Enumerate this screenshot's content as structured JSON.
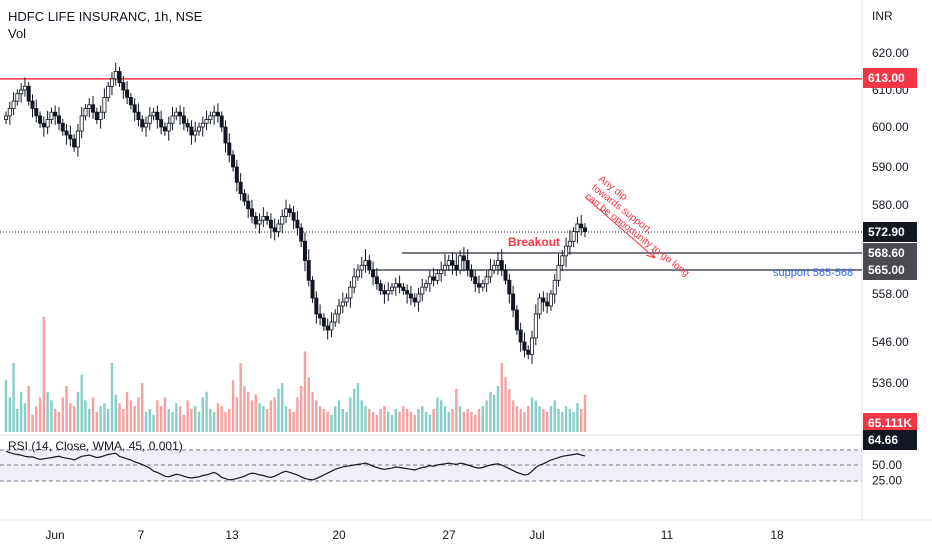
{
  "header": {
    "symbol_line": "HDFC LIFE INSURANC, 1h, NSE",
    "volume_label": "Vol"
  },
  "rsi_label": "RSI (14, Close, WMA, 45, 0.001)",
  "price_axis": {
    "currency": "INR",
    "ticks": [
      "620.00",
      "610.00",
      "600.00",
      "590.00",
      "580.00",
      "558.00",
      "546.00",
      "536.00"
    ]
  },
  "rsi_axis": {
    "ticks": [
      "50.00",
      "25.00"
    ]
  },
  "time_axis": {
    "ticks": [
      "Jun",
      "7",
      "13",
      "20",
      "27",
      "Jul",
      "11",
      "18"
    ]
  },
  "price_badges": {
    "resistance": "613.00",
    "last": "572.90",
    "upper_support": "568.60",
    "lower_support": "565.00",
    "volume": "65.111K",
    "rsi": "64.66"
  },
  "annotations": {
    "breakout": "Breakout",
    "support": "support 565-568",
    "dip_note": "Any dip towards support, can be opportunity to go long"
  },
  "colors": {
    "up": "#131722",
    "down": "#131722",
    "vol_up": "#26a69a",
    "vol_down": "#ef5350",
    "resistance_line": "#f23645",
    "support_line": "#787b86",
    "annotation_red": "#f23645",
    "annotation_blue": "#2962ff",
    "rsi_band": "#7e57c2"
  },
  "chart_data": {
    "type": "candlestick",
    "title": "HDFC LIFE INSURANC, 1h, NSE",
    "ylabel": "INR",
    "ylim": [
      524,
      626
    ],
    "horizontal_levels": [
      613.0,
      568.6,
      565.0
    ],
    "last_price": 572.9,
    "close": [
      603,
      605,
      607,
      609,
      610,
      611,
      607,
      605,
      603,
      601,
      600,
      602,
      604,
      603,
      601,
      599,
      598,
      597,
      595,
      599,
      603,
      605,
      606,
      604,
      602,
      604,
      608,
      611,
      613,
      615,
      612,
      610,
      608,
      606,
      604,
      602,
      600,
      601,
      603,
      604,
      602,
      600,
      599,
      601,
      603,
      604,
      603,
      601,
      600,
      598,
      599,
      600,
      601,
      602,
      603,
      604,
      603,
      600,
      596,
      593,
      590,
      586,
      583,
      581,
      579,
      577,
      575,
      576,
      577,
      576,
      574,
      573,
      575,
      577,
      579,
      578,
      576,
      574,
      571,
      567,
      562,
      557,
      553,
      552,
      550,
      549,
      551,
      553,
      555,
      556,
      557,
      560,
      563,
      565,
      566,
      567,
      565,
      563,
      561,
      559,
      558,
      559,
      560,
      561,
      560,
      559,
      558,
      557,
      556,
      558,
      560,
      561,
      563,
      562,
      564,
      565,
      566,
      567,
      566,
      565,
      568,
      567,
      565,
      563,
      561,
      560,
      561,
      563,
      565,
      566,
      567,
      565,
      562,
      558,
      554,
      549,
      546,
      544,
      543,
      547,
      553,
      557,
      556,
      555,
      558,
      562,
      566,
      568,
      570,
      571,
      573,
      575,
      574,
      573
    ],
    "rsi": [
      72,
      70,
      68,
      67,
      66,
      64,
      63,
      63,
      61,
      59,
      60,
      61,
      62,
      63,
      64,
      62,
      61,
      60,
      58,
      61,
      64,
      65,
      66,
      64,
      62,
      63,
      65,
      67,
      68,
      69,
      64,
      62,
      60,
      58,
      55,
      53,
      51,
      48,
      45,
      40,
      38,
      35,
      32,
      31,
      33,
      35,
      34,
      32,
      30,
      29,
      30,
      31,
      33,
      34,
      36,
      38,
      35,
      30,
      28,
      26,
      27,
      28,
      30,
      32,
      35,
      37,
      36,
      34,
      33,
      31,
      30,
      32,
      35,
      38,
      40,
      38,
      36,
      34,
      31,
      28,
      27,
      26,
      28,
      31,
      34,
      37,
      40,
      43,
      45,
      47,
      48,
      49,
      50,
      51,
      52,
      53,
      51,
      48,
      46,
      44,
      43,
      44,
      45,
      47,
      46,
      45,
      44,
      43,
      42,
      44,
      46,
      47,
      49,
      48,
      50,
      51,
      52,
      53,
      52,
      51,
      53,
      52,
      50,
      48,
      46,
      45,
      46,
      48,
      50,
      51,
      52,
      50,
      47,
      44,
      41,
      38,
      36,
      34,
      35,
      40,
      46,
      50,
      52,
      55,
      58,
      60,
      62,
      64,
      65,
      66,
      67,
      68,
      66,
      64.66
    ],
    "volume_k": [
      90,
      60,
      120,
      40,
      70,
      50,
      80,
      30,
      45,
      60,
      200,
      70,
      55,
      40,
      35,
      60,
      80,
      50,
      45,
      70,
      100,
      55,
      40,
      60,
      35,
      45,
      50,
      40,
      120,
      65,
      50,
      40,
      70,
      55,
      45,
      60,
      85,
      35,
      40,
      30,
      55,
      45,
      60,
      40,
      35,
      50,
      45,
      30,
      55,
      40,
      45,
      35,
      60,
      70,
      40,
      35,
      50,
      45,
      35,
      40,
      90,
      60,
      120,
      80,
      70,
      55,
      65,
      50,
      45,
      40,
      55,
      60,
      75,
      85,
      45,
      40,
      35,
      60,
      80,
      140,
      95,
      70,
      55,
      45,
      40,
      35,
      30,
      45,
      55,
      40,
      35,
      60,
      75,
      85,
      55,
      45,
      40,
      35,
      30,
      40,
      45,
      35,
      30,
      40,
      35,
      45,
      40,
      35,
      30,
      40,
      45,
      35,
      30,
      40,
      60,
      55,
      45,
      35,
      40,
      75,
      45,
      35,
      40,
      35,
      30,
      40,
      45,
      55,
      70,
      65,
      80,
      120,
      95,
      75,
      55,
      45,
      40,
      35,
      45,
      60,
      55,
      45,
      40,
      35,
      45,
      55,
      40,
      35,
      45,
      40,
      35,
      50,
      40,
      65.111
    ],
    "time_ticks": [
      "Jun",
      "7",
      "13",
      "20",
      "27",
      "Jul",
      "11",
      "18"
    ],
    "rsi_levels": [
      70,
      50,
      30
    ]
  }
}
